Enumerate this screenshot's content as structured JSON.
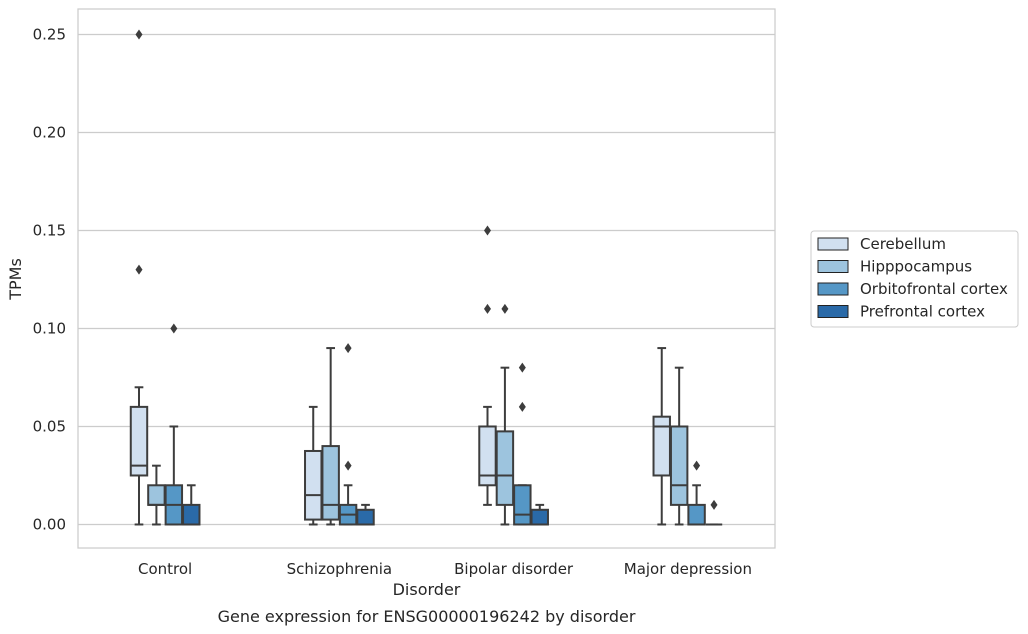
{
  "chart_data": {
    "type": "box",
    "xlabel": "Disorder",
    "ylabel": "TPMs",
    "caption": "Gene expression for ENSG00000196242 by disorder",
    "ylim": [
      -0.012,
      0.263
    ],
    "yticks": [
      0.0,
      0.05,
      0.1,
      0.15,
      0.2,
      0.25
    ],
    "ytick_labels": [
      "0.00",
      "0.05",
      "0.10",
      "0.15",
      "0.20",
      "0.25"
    ],
    "grid": "horizontal",
    "legend_position": "right",
    "categories": [
      "Control",
      "Schizophrenia",
      "Bipolar disorder",
      "Major depression"
    ],
    "series": [
      {
        "name": "Cerebellum",
        "color": "#d1e0f0",
        "boxes": [
          {
            "whislo": 0.0,
            "q1": 0.025,
            "med": 0.03,
            "q3": 0.06,
            "whishi": 0.07,
            "fliers": [
              0.25,
              0.13
            ]
          },
          {
            "whislo": 0.0,
            "q1": 0.0025,
            "med": 0.015,
            "q3": 0.0375,
            "whishi": 0.06,
            "fliers": []
          },
          {
            "whislo": 0.01,
            "q1": 0.02,
            "med": 0.025,
            "q3": 0.05,
            "whishi": 0.06,
            "fliers": [
              0.15,
              0.11
            ]
          },
          {
            "whislo": 0.0,
            "q1": 0.025,
            "med": 0.05,
            "q3": 0.055,
            "whishi": 0.09,
            "fliers": []
          }
        ]
      },
      {
        "name": "Hipppocampus",
        "color": "#9dc4de",
        "boxes": [
          {
            "whislo": 0.0,
            "q1": 0.01,
            "med": 0.01,
            "q3": 0.02,
            "whishi": 0.03,
            "fliers": []
          },
          {
            "whislo": 0.0,
            "q1": 0.0025,
            "med": 0.01,
            "q3": 0.04,
            "whishi": 0.09,
            "fliers": []
          },
          {
            "whislo": 0.0,
            "q1": 0.01,
            "med": 0.025,
            "q3": 0.0475,
            "whishi": 0.08,
            "fliers": [
              0.11
            ]
          },
          {
            "whislo": 0.0,
            "q1": 0.01,
            "med": 0.02,
            "q3": 0.05,
            "whishi": 0.08,
            "fliers": []
          }
        ]
      },
      {
        "name": "Orbitofrontal cortex",
        "color": "#5597c6",
        "boxes": [
          {
            "whislo": 0.0,
            "q1": 0.0,
            "med": 0.01,
            "q3": 0.02,
            "whishi": 0.05,
            "fliers": [
              0.1
            ]
          },
          {
            "whislo": 0.0,
            "q1": 0.0,
            "med": 0.005,
            "q3": 0.01,
            "whishi": 0.02,
            "fliers": [
              0.09,
              0.03
            ]
          },
          {
            "whislo": 0.0,
            "q1": 0.0,
            "med": 0.005,
            "q3": 0.02,
            "whishi": 0.02,
            "fliers": [
              0.08,
              0.06
            ]
          },
          {
            "whislo": 0.0,
            "q1": 0.0,
            "med": 0.0,
            "q3": 0.01,
            "whishi": 0.02,
            "fliers": [
              0.03
            ]
          }
        ]
      },
      {
        "name": "Prefrontal cortex",
        "color": "#2a6aa8",
        "boxes": [
          {
            "whislo": 0.0,
            "q1": 0.0,
            "med": 0.0,
            "q3": 0.01,
            "whishi": 0.02,
            "fliers": []
          },
          {
            "whislo": 0.0,
            "q1": 0.0,
            "med": 0.0,
            "q3": 0.0075,
            "whishi": 0.01,
            "fliers": []
          },
          {
            "whislo": 0.0,
            "q1": 0.0,
            "med": 0.0,
            "q3": 0.0075,
            "whishi": 0.01,
            "fliers": []
          },
          {
            "whislo": 0.0,
            "q1": 0.0,
            "med": 0.0,
            "q3": 0.0,
            "whishi": 0.0,
            "fliers": [
              0.01
            ]
          }
        ]
      }
    ]
  }
}
